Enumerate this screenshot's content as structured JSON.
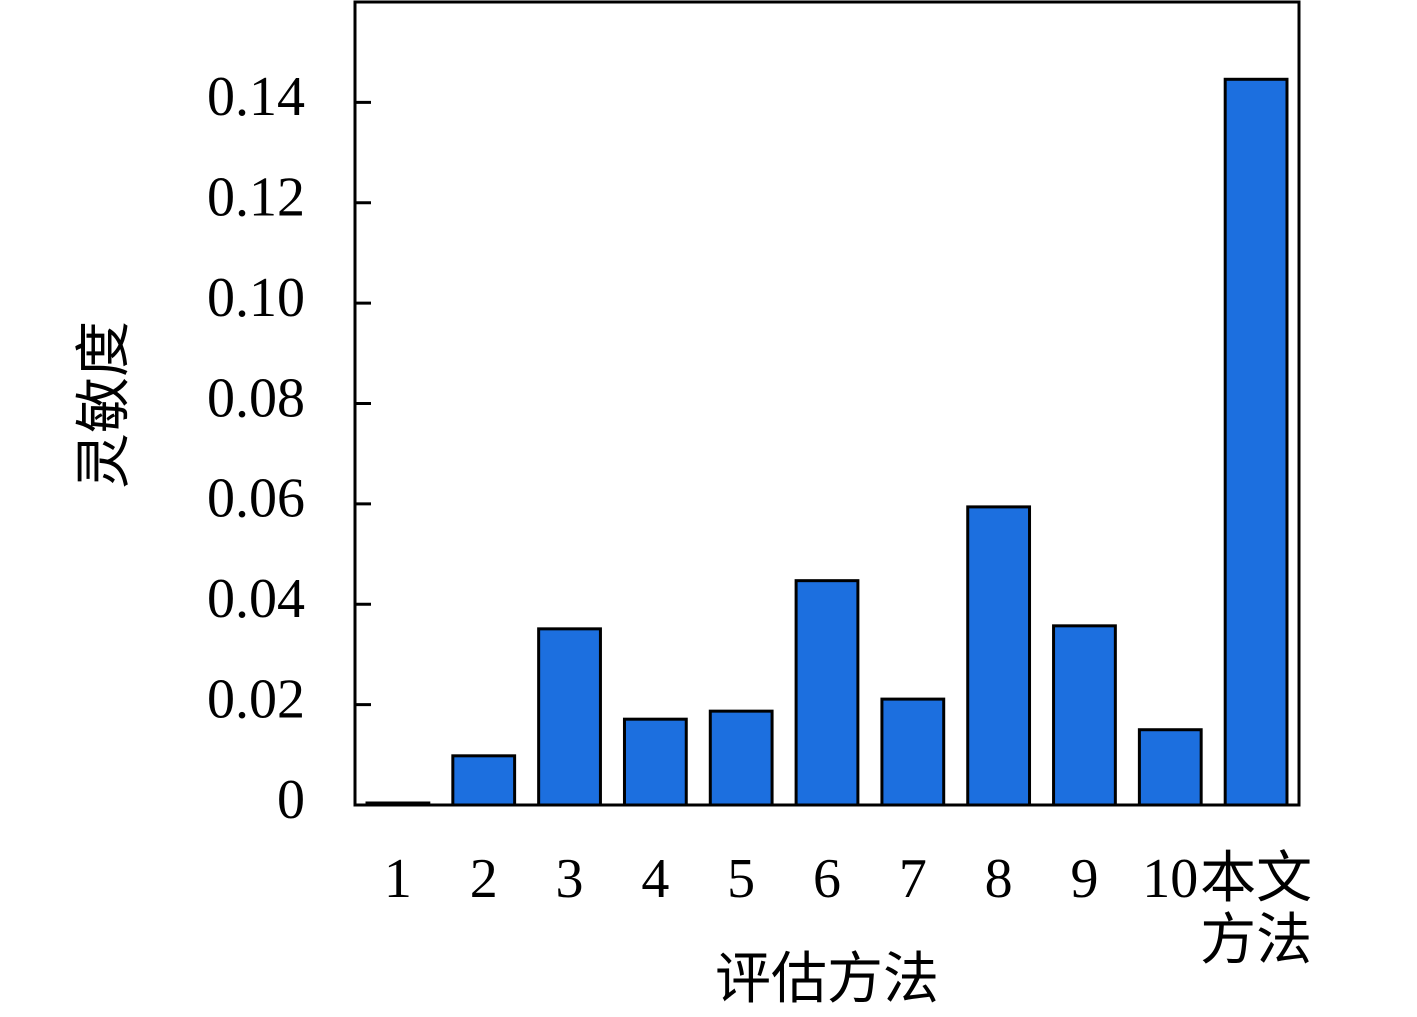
{
  "chart_data": {
    "type": "bar",
    "x_label": "评估方法",
    "y_label": "灵敏度",
    "categories": [
      "1",
      "2",
      "3",
      "4",
      "5",
      "6",
      "7",
      "8",
      "9",
      "10",
      "本文方法"
    ],
    "values": [
      0.0004,
      0.0098,
      0.0351,
      0.0171,
      0.0187,
      0.0447,
      0.0211,
      0.0594,
      0.0357,
      0.015,
      0.1446
    ],
    "color": "#1c6fdf",
    "ylim": [
      0,
      0.16
    ],
    "yticks": [
      0,
      0.02,
      0.04,
      0.06,
      0.08,
      {
        "value": 0.1,
        "label": "0.10"
      },
      0.12,
      0.14
    ]
  }
}
